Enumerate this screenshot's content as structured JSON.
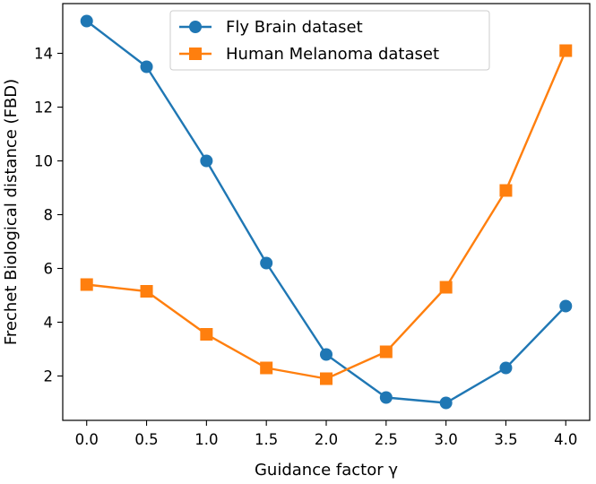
{
  "chart_data": {
    "type": "line",
    "title": "",
    "xlabel": "Guidance factor γ",
    "ylabel": "Frechet Biological distance (FBD)",
    "x": [
      0.0,
      0.5,
      1.0,
      1.5,
      2.0,
      2.5,
      3.0,
      3.5,
      4.0
    ],
    "xticks": [
      0.0,
      0.5,
      1.0,
      1.5,
      2.0,
      2.5,
      3.0,
      3.5,
      4.0
    ],
    "xtick_labels": [
      "0.0",
      "0.5",
      "1.0",
      "1.5",
      "2.0",
      "2.5",
      "3.0",
      "3.5",
      "4.0"
    ],
    "yticks": [
      2,
      4,
      6,
      8,
      10,
      12,
      14
    ],
    "ytick_labels": [
      "2",
      "4",
      "6",
      "8",
      "10",
      "12",
      "14"
    ],
    "xlim": [
      -0.2,
      4.2
    ],
    "ylim": [
      0.35,
      15.85
    ],
    "grid": false,
    "legend_position": "top-center",
    "series": [
      {
        "name": "Fly Brain dataset",
        "marker": "circle",
        "color": "#1f77b4",
        "values": [
          15.2,
          13.5,
          10.0,
          6.2,
          2.8,
          1.2,
          1.0,
          2.3,
          4.6
        ]
      },
      {
        "name": "Human Melanoma dataset",
        "marker": "square",
        "color": "#ff7f0e",
        "values": [
          5.4,
          5.15,
          3.55,
          2.3,
          1.9,
          2.9,
          5.3,
          8.9,
          14.1
        ]
      }
    ]
  }
}
